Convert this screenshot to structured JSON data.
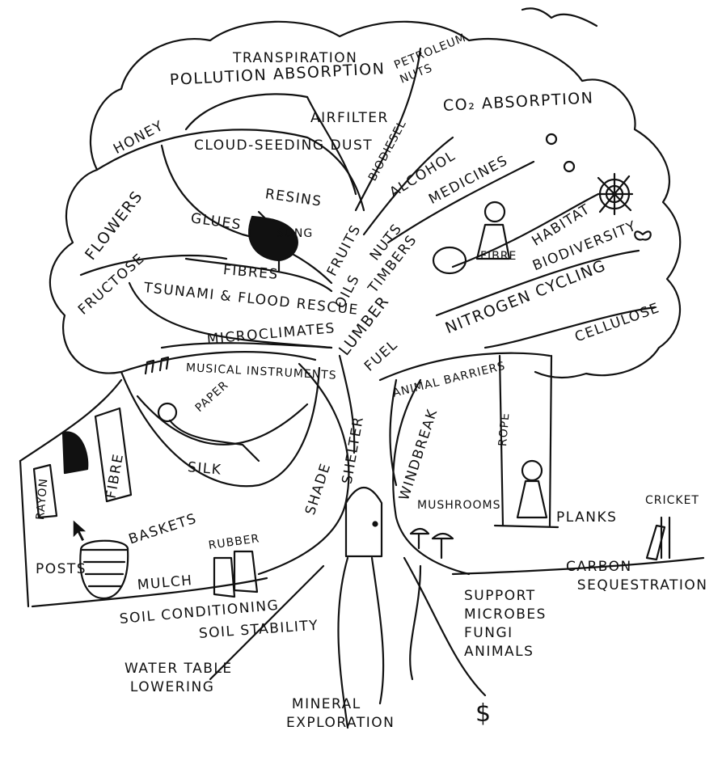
{
  "colors": {
    "ink": "#111111",
    "paper": "#ffffff"
  },
  "labels": {
    "transpiration": "TRANSPIRATION",
    "pollution_absorption": "POLLUTION ABSORPTION",
    "petroleum_nuts": "PETROLEUM\nNUTS",
    "airfilter": "AIRFILTER",
    "co2_absorption": "CO₂ ABSORPTION",
    "honey": "HONEY",
    "cloud_seeding_dust": "CLOUD-SEEDING DUST",
    "biodiesel": "BIODIESEL",
    "alcohol": "ALCOHOL",
    "medicines": "MEDICINES",
    "resins": "RESINS",
    "glues": "GLUES",
    "song": "SONG",
    "flowers": "FLOWERS",
    "fruits": "FRUITS",
    "nuts": "NUTS",
    "habitat": "HABITAT",
    "biodiversity": "BIODIVERSITY",
    "fibres": "FIBRES",
    "oils": "OILS",
    "timbers": "TIMBERS",
    "fructose": "FRUCTOSE",
    "tsunami_flood_rescue": "TSUNAMI & FLOOD RESCUE",
    "lumber": "LUMBER",
    "nitrogen_cycling": "NITROGEN CYCLING",
    "fibre_dress": "FIBRE",
    "cellulose": "CELLULOSE",
    "microclimates": "MICROCLIMATES",
    "fuel": "FUEL",
    "musical_instruments": "MUSICAL INSTRUMENTS",
    "animal_barriers": "ANIMAL BARRIERS",
    "paper": "PAPER",
    "silk": "SILK",
    "fibre_cloth": "FIBRE",
    "rayon": "RAYON",
    "shade": "SHADE",
    "shelter": "SHELTER",
    "windbreak": "WINDBREAK",
    "rope": "ROPE",
    "mushrooms": "MUSHROOMS",
    "planks": "PLANKS",
    "cricket": "CRICKET",
    "baskets": "BASKETS",
    "rubber": "RUBBER",
    "posts": "POSTS",
    "mulch": "MULCH",
    "carbon_sequestration": "CARBON\n  SEQUESTRATION",
    "soil_conditioning": "SOIL CONDITIONING",
    "soil_stability": "SOIL STABILITY",
    "support_list": "SUPPORT\nMICROBES\nFUNGI\nANIMALS",
    "water_table_lowering": "WATER TABLE\n LOWERING",
    "mineral_exploration": " MINERAL\nEXPLORATION",
    "dollar": "$"
  }
}
